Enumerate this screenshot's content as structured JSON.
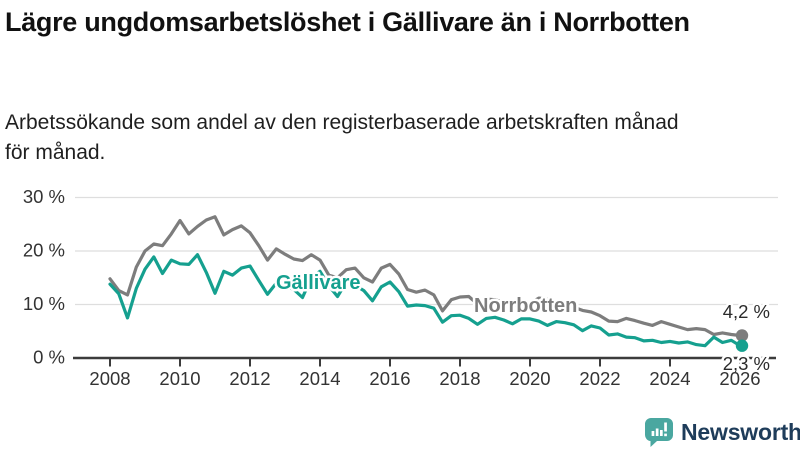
{
  "header": {
    "title": "Lägre ungdomsarbetslöshet i Gällivare än i Norrbotten",
    "subtitle": "Arbetssökande som andel av den registerbaserade arbetskraften månad för månad."
  },
  "chart_data": {
    "type": "line",
    "title": "Lägre ungdomsarbetslöshet i Gällivare än i Norrbotten",
    "unit": "%",
    "grid": true,
    "legend_position": "inline-labels",
    "x_axis": {
      "range": [
        2007.9,
        2026.6
      ],
      "ticks": [
        2008,
        2010,
        2012,
        2014,
        2016,
        2018,
        2020,
        2022,
        2024,
        2026
      ],
      "tick_labels": [
        "2008",
        "2010",
        "2012",
        "2014",
        "2016",
        "2018",
        "2020",
        "2022",
        "2024",
        "2026"
      ]
    },
    "y_axis": {
      "range": [
        0,
        31
      ],
      "ticks": [
        0,
        10,
        20,
        30
      ],
      "tick_labels": [
        "0 %",
        "10 %",
        "20 %",
        "30 %"
      ]
    },
    "series": [
      {
        "name": "Norrbotten",
        "color": "#7d7d7d",
        "end_value": 4.2,
        "end_label": "4,2 %",
        "points": [
          [
            2008.0,
            14.8
          ],
          [
            2008.25,
            12.6
          ],
          [
            2008.5,
            11.8
          ],
          [
            2008.75,
            17.0
          ],
          [
            2009.0,
            20.0
          ],
          [
            2009.25,
            21.3
          ],
          [
            2009.5,
            21.0
          ],
          [
            2009.75,
            23.2
          ],
          [
            2010.0,
            25.7
          ],
          [
            2010.25,
            23.2
          ],
          [
            2010.5,
            24.6
          ],
          [
            2010.75,
            25.8
          ],
          [
            2011.0,
            26.4
          ],
          [
            2011.25,
            23.0
          ],
          [
            2011.5,
            24.0
          ],
          [
            2011.75,
            24.7
          ],
          [
            2012.0,
            23.4
          ],
          [
            2012.25,
            21.0
          ],
          [
            2012.5,
            18.3
          ],
          [
            2012.75,
            20.4
          ],
          [
            2013.0,
            19.4
          ],
          [
            2013.25,
            18.5
          ],
          [
            2013.5,
            18.2
          ],
          [
            2013.75,
            19.3
          ],
          [
            2014.0,
            18.3
          ],
          [
            2014.25,
            15.5
          ],
          [
            2014.5,
            15.0
          ],
          [
            2014.75,
            16.5
          ],
          [
            2015.0,
            16.8
          ],
          [
            2015.25,
            15.0
          ],
          [
            2015.5,
            14.2
          ],
          [
            2015.75,
            16.8
          ],
          [
            2016.0,
            17.5
          ],
          [
            2016.25,
            15.7
          ],
          [
            2016.5,
            12.8
          ],
          [
            2016.75,
            12.3
          ],
          [
            2017.0,
            12.7
          ],
          [
            2017.25,
            11.8
          ],
          [
            2017.5,
            8.8
          ],
          [
            2017.75,
            10.9
          ],
          [
            2018.0,
            11.4
          ],
          [
            2018.25,
            11.5
          ],
          [
            2018.5,
            10.1
          ],
          [
            2018.75,
            11.0
          ],
          [
            2019.0,
            10.9
          ],
          [
            2019.25,
            10.4
          ],
          [
            2019.5,
            9.8
          ],
          [
            2019.75,
            10.3
          ],
          [
            2020.0,
            10.2
          ],
          [
            2020.25,
            11.2
          ],
          [
            2020.5,
            11.0
          ],
          [
            2020.75,
            10.5
          ],
          [
            2021.0,
            10.1
          ],
          [
            2021.25,
            9.5
          ],
          [
            2021.5,
            8.9
          ],
          [
            2021.75,
            8.6
          ],
          [
            2022.0,
            7.9
          ],
          [
            2022.25,
            6.9
          ],
          [
            2022.5,
            6.8
          ],
          [
            2022.75,
            7.4
          ],
          [
            2023.0,
            7.0
          ],
          [
            2023.25,
            6.5
          ],
          [
            2023.5,
            6.1
          ],
          [
            2023.75,
            6.8
          ],
          [
            2024.0,
            6.3
          ],
          [
            2024.25,
            5.8
          ],
          [
            2024.5,
            5.3
          ],
          [
            2024.75,
            5.5
          ],
          [
            2025.0,
            5.3
          ],
          [
            2025.25,
            4.4
          ],
          [
            2025.5,
            4.7
          ],
          [
            2025.75,
            4.4
          ],
          [
            2026.0,
            4.2
          ]
        ]
      },
      {
        "name": "Gällivare",
        "color": "#15a08f",
        "end_value": 2.3,
        "end_label": "2,3 %",
        "points": [
          [
            2008.0,
            13.8
          ],
          [
            2008.25,
            12.0
          ],
          [
            2008.5,
            7.5
          ],
          [
            2008.75,
            13.0
          ],
          [
            2009.0,
            16.6
          ],
          [
            2009.25,
            18.9
          ],
          [
            2009.5,
            15.8
          ],
          [
            2009.75,
            18.3
          ],
          [
            2010.0,
            17.6
          ],
          [
            2010.25,
            17.5
          ],
          [
            2010.5,
            19.3
          ],
          [
            2010.75,
            16.0
          ],
          [
            2011.0,
            12.1
          ],
          [
            2011.25,
            16.2
          ],
          [
            2011.5,
            15.5
          ],
          [
            2011.75,
            16.8
          ],
          [
            2012.0,
            17.2
          ],
          [
            2012.25,
            14.5
          ],
          [
            2012.5,
            11.9
          ],
          [
            2012.75,
            14.0
          ],
          [
            2013.0,
            13.5
          ],
          [
            2013.25,
            12.8
          ],
          [
            2013.5,
            11.3
          ],
          [
            2013.75,
            15.0
          ],
          [
            2014.0,
            16.2
          ],
          [
            2014.25,
            13.5
          ],
          [
            2014.5,
            11.5
          ],
          [
            2014.75,
            14.2
          ],
          [
            2015.0,
            13.6
          ],
          [
            2015.25,
            12.6
          ],
          [
            2015.5,
            10.7
          ],
          [
            2015.75,
            13.3
          ],
          [
            2016.0,
            14.2
          ],
          [
            2016.25,
            12.4
          ],
          [
            2016.5,
            9.7
          ],
          [
            2016.75,
            9.9
          ],
          [
            2017.0,
            9.8
          ],
          [
            2017.25,
            9.3
          ],
          [
            2017.5,
            6.7
          ],
          [
            2017.75,
            7.9
          ],
          [
            2018.0,
            8.0
          ],
          [
            2018.25,
            7.4
          ],
          [
            2018.5,
            6.3
          ],
          [
            2018.75,
            7.4
          ],
          [
            2019.0,
            7.6
          ],
          [
            2019.25,
            7.1
          ],
          [
            2019.5,
            6.4
          ],
          [
            2019.75,
            7.3
          ],
          [
            2020.0,
            7.3
          ],
          [
            2020.25,
            6.9
          ],
          [
            2020.5,
            6.1
          ],
          [
            2020.75,
            6.8
          ],
          [
            2021.0,
            6.6
          ],
          [
            2021.25,
            6.2
          ],
          [
            2021.5,
            5.1
          ],
          [
            2021.75,
            6.0
          ],
          [
            2022.0,
            5.6
          ],
          [
            2022.25,
            4.3
          ],
          [
            2022.5,
            4.5
          ],
          [
            2022.75,
            3.9
          ],
          [
            2023.0,
            3.8
          ],
          [
            2023.25,
            3.2
          ],
          [
            2023.5,
            3.3
          ],
          [
            2023.75,
            2.9
          ],
          [
            2024.0,
            3.1
          ],
          [
            2024.25,
            2.8
          ],
          [
            2024.5,
            3.0
          ],
          [
            2024.75,
            2.5
          ],
          [
            2025.0,
            2.3
          ],
          [
            2025.25,
            3.9
          ],
          [
            2025.5,
            2.9
          ],
          [
            2025.75,
            3.3
          ],
          [
            2026.0,
            2.3
          ]
        ]
      }
    ]
  },
  "footer": {
    "brand": "Newsworthy",
    "logo_icon": "bar-chart-speech-bubble-icon",
    "logo_color": "#4aa7a0",
    "brand_text_color": "#1e3c5a"
  }
}
